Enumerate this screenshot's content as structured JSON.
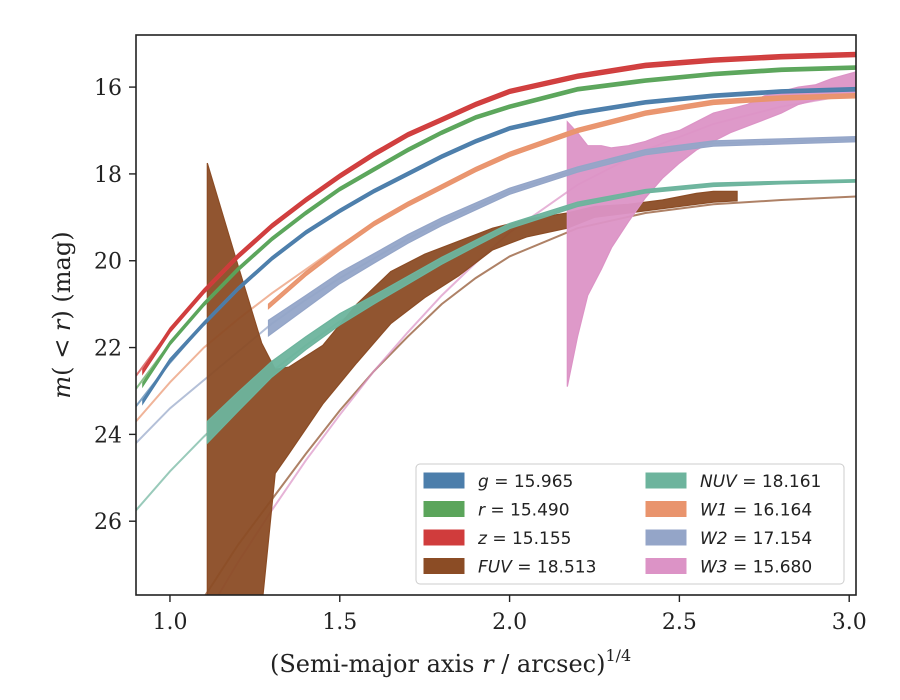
{
  "chart_data": {
    "type": "line",
    "xlabel": "(Semi-major axis r / arcsec)",
    "xlabel_parts": {
      "pre": "(Semi-major axis ",
      "var": "r",
      "post": " / arcsec)",
      "sup": "1/4"
    },
    "ylabel": "m(< r) (mag)",
    "ylabel_parts": {
      "m": "m",
      "open": "(",
      "lt": " < ",
      "r": "r",
      "close": ")",
      "unit": " (mag)"
    },
    "xlim": [
      0.9,
      3.02
    ],
    "ylim": [
      27.7,
      14.8
    ],
    "y_inverted": true,
    "xticks": [
      1.0,
      1.5,
      2.0,
      2.5,
      3.0
    ],
    "xtick_labels": [
      "1.0",
      "1.5",
      "2.0",
      "2.5",
      "3.0"
    ],
    "yticks": [
      16,
      18,
      20,
      22,
      24,
      26
    ],
    "ytick_labels": [
      "16",
      "18",
      "20",
      "22",
      "24",
      "26"
    ],
    "grid": false,
    "legend_position": "lower-right",
    "legend_columns": 2,
    "series": [
      {
        "name": "g",
        "label_var": "g",
        "label_value": "15.965",
        "color": "#4c7eab",
        "model": {
          "x": [
            0.9,
            1.0,
            1.1,
            1.2,
            1.3,
            1.4,
            1.5,
            1.6,
            1.7,
            1.8,
            1.9,
            2.0,
            2.2,
            2.4,
            2.6,
            2.8,
            3.02
          ],
          "y": [
            23.35,
            22.35,
            21.45,
            20.65,
            19.95,
            19.35,
            18.85,
            18.4,
            18.0,
            17.6,
            17.25,
            16.95,
            16.6,
            16.35,
            16.2,
            16.1,
            16.05
          ]
        },
        "observed": {
          "x": [
            0.92,
            1.0,
            1.1,
            1.2,
            1.3,
            1.4,
            1.5,
            1.6,
            1.7,
            1.8,
            1.9,
            2.0,
            2.2,
            2.4,
            2.6,
            2.8,
            3.02
          ],
          "y": [
            23.25,
            22.3,
            21.45,
            20.65,
            19.95,
            19.35,
            18.85,
            18.4,
            18.0,
            17.6,
            17.25,
            16.95,
            16.6,
            16.35,
            16.2,
            16.1,
            16.05
          ],
          "err": 0.04
        }
      },
      {
        "name": "r",
        "label_var": "r",
        "label_value": "15.490",
        "color": "#5ba55b",
        "model": {
          "x": [
            0.9,
            1.0,
            1.1,
            1.2,
            1.3,
            1.4,
            1.5,
            1.6,
            1.7,
            1.8,
            1.9,
            2.0,
            2.2,
            2.4,
            2.6,
            2.8,
            3.02
          ],
          "y": [
            22.95,
            21.9,
            21.0,
            20.2,
            19.5,
            18.9,
            18.35,
            17.9,
            17.45,
            17.05,
            16.7,
            16.45,
            16.05,
            15.85,
            15.7,
            15.6,
            15.55
          ]
        },
        "observed": {
          "x": [
            0.92,
            1.0,
            1.1,
            1.2,
            1.3,
            1.4,
            1.5,
            1.6,
            1.7,
            1.8,
            1.9,
            2.0,
            2.2,
            2.4,
            2.6,
            2.8,
            3.02
          ],
          "y": [
            22.85,
            21.9,
            21.0,
            20.2,
            19.5,
            18.9,
            18.35,
            17.9,
            17.45,
            17.05,
            16.7,
            16.45,
            16.05,
            15.85,
            15.7,
            15.6,
            15.55
          ],
          "err": 0.04
        }
      },
      {
        "name": "z",
        "label_var": "z",
        "label_value": "15.155",
        "color": "#d03c3c",
        "model": {
          "x": [
            0.9,
            1.0,
            1.1,
            1.2,
            1.3,
            1.4,
            1.5,
            1.6,
            1.7,
            1.8,
            1.9,
            2.0,
            2.2,
            2.4,
            2.6,
            2.8,
            3.02
          ],
          "y": [
            22.65,
            21.6,
            20.7,
            19.9,
            19.2,
            18.6,
            18.05,
            17.55,
            17.1,
            16.75,
            16.4,
            16.1,
            15.75,
            15.5,
            15.38,
            15.3,
            15.25
          ]
        },
        "observed": {
          "x": [
            0.92,
            1.0,
            1.1,
            1.2,
            1.3,
            1.4,
            1.5,
            1.6,
            1.7,
            1.8,
            1.9,
            2.0,
            2.2,
            2.4,
            2.6,
            2.8,
            3.02
          ],
          "y": [
            22.55,
            21.6,
            20.7,
            19.9,
            19.2,
            18.6,
            18.05,
            17.55,
            17.1,
            16.75,
            16.4,
            16.1,
            15.75,
            15.5,
            15.38,
            15.3,
            15.25
          ],
          "err": 0.05
        }
      },
      {
        "name": "FUV",
        "label_var": "FUV",
        "label_value": "18.513",
        "color": "#8b4c25",
        "model": {
          "x": [
            1.08,
            1.2,
            1.3,
            1.4,
            1.5,
            1.6,
            1.7,
            1.8,
            1.9,
            2.0,
            2.2,
            2.4,
            2.6,
            2.8,
            3.02
          ],
          "y": [
            28.0,
            26.55,
            25.5,
            24.45,
            23.45,
            22.55,
            21.75,
            21.0,
            20.4,
            19.9,
            19.25,
            18.9,
            18.7,
            18.6,
            18.52
          ]
        },
        "band_x": [
          1.11,
          1.2,
          1.27,
          1.31,
          1.35,
          1.45,
          1.55,
          1.65,
          1.75,
          1.85,
          1.95,
          2.05,
          2.17,
          2.25,
          2.35,
          2.45,
          2.55,
          2.6,
          2.67
        ],
        "band_upper": [
          17.75,
          20.1,
          21.9,
          22.5,
          22.45,
          21.95,
          21.0,
          20.25,
          19.85,
          19.55,
          19.25,
          19.05,
          18.9,
          18.75,
          18.7,
          18.6,
          18.45,
          18.4,
          18.4
        ],
        "band_lower": [
          28.0,
          28.0,
          28.0,
          24.9,
          24.45,
          23.3,
          22.35,
          21.45,
          20.85,
          20.35,
          19.75,
          19.45,
          19.25,
          19.0,
          18.9,
          18.8,
          18.7,
          18.65,
          18.62
        ]
      },
      {
        "name": "NUV",
        "label_var": "NUV",
        "label_value": "18.161",
        "color": "#6db49d",
        "model": {
          "x": [
            0.9,
            1.0,
            1.1,
            1.2,
            1.3,
            1.4,
            1.5,
            1.6,
            1.7,
            1.8,
            1.9,
            2.0,
            2.2,
            2.4,
            2.6,
            2.8,
            3.02
          ],
          "y": [
            25.75,
            24.85,
            24.05,
            23.3,
            22.55,
            21.95,
            21.4,
            20.95,
            20.5,
            20.05,
            19.6,
            19.2,
            18.7,
            18.4,
            18.25,
            18.2,
            18.16
          ]
        },
        "observed": {
          "x": [
            1.11,
            1.2,
            1.3,
            1.4,
            1.5,
            1.6,
            1.7,
            1.8,
            1.9,
            2.0,
            2.2,
            2.4,
            2.6,
            2.8,
            3.02
          ],
          "y": [
            23.95,
            23.25,
            22.5,
            21.9,
            21.35,
            20.9,
            20.45,
            20.0,
            19.6,
            19.2,
            18.7,
            18.4,
            18.25,
            18.2,
            18.16
          ],
          "err": [
            0.25,
            0.22,
            0.18,
            0.15,
            0.13,
            0.1,
            0.09,
            0.08,
            0.07,
            0.06,
            0.05,
            0.04,
            0.04,
            0.03,
            0.03
          ]
        }
      },
      {
        "name": "W1",
        "label_var": "W1",
        "label_value": "16.164",
        "color": "#e9946d",
        "model": {
          "x": [
            0.9,
            1.0,
            1.1,
            1.2,
            1.3,
            1.4,
            1.5,
            1.6,
            1.7,
            1.8,
            1.9,
            2.0,
            2.2,
            2.4,
            2.6,
            2.8,
            3.02
          ],
          "y": [
            23.7,
            22.8,
            22.0,
            21.35,
            20.75,
            20.2,
            19.65,
            19.15,
            18.7,
            18.3,
            17.9,
            17.55,
            17.0,
            16.6,
            16.35,
            16.25,
            16.2
          ]
        },
        "observed": {
          "x": [
            1.29,
            1.4,
            1.5,
            1.6,
            1.7,
            1.8,
            1.9,
            2.0,
            2.2,
            2.4,
            2.6,
            2.8,
            3.02
          ],
          "y": [
            21.05,
            20.3,
            19.7,
            19.15,
            18.7,
            18.3,
            17.9,
            17.55,
            17.0,
            16.6,
            16.35,
            16.25,
            16.2
          ],
          "err": 0.05
        }
      },
      {
        "name": "W2",
        "label_var": "W2",
        "label_value": "17.154",
        "color": "#94a5c8",
        "model": {
          "x": [
            0.9,
            1.0,
            1.1,
            1.2,
            1.3,
            1.4,
            1.5,
            1.6,
            1.7,
            1.8,
            1.9,
            2.0,
            2.2,
            2.4,
            2.6,
            2.8,
            3.02
          ],
          "y": [
            24.2,
            23.4,
            22.75,
            22.1,
            21.45,
            20.9,
            20.4,
            19.95,
            19.5,
            19.1,
            18.75,
            18.4,
            17.9,
            17.5,
            17.3,
            17.25,
            17.2
          ]
        },
        "observed": {
          "x": [
            1.29,
            1.4,
            1.5,
            1.6,
            1.7,
            1.8,
            1.9,
            2.0,
            2.2,
            2.4,
            2.6,
            2.8,
            3.02
          ],
          "y": [
            21.55,
            20.95,
            20.4,
            19.95,
            19.5,
            19.1,
            18.75,
            18.4,
            17.9,
            17.5,
            17.3,
            17.25,
            17.2
          ],
          "err": [
            0.18,
            0.15,
            0.13,
            0.11,
            0.1,
            0.09,
            0.08,
            0.07,
            0.06,
            0.06,
            0.06,
            0.06,
            0.06
          ]
        }
      },
      {
        "name": "W3",
        "label_var": "W3",
        "label_value": "15.680",
        "color": "#dc93c6",
        "model": {
          "x": [
            1.12,
            1.2,
            1.3,
            1.4,
            1.5,
            1.6,
            1.7,
            1.8,
            1.9,
            2.0,
            2.2,
            2.4,
            2.6,
            2.8,
            3.02
          ],
          "y": [
            28.0,
            26.95,
            25.75,
            24.6,
            23.55,
            22.55,
            21.65,
            20.8,
            20.05,
            19.35,
            18.25,
            17.45,
            16.85,
            16.45,
            16.15
          ]
        },
        "band_x": [
          2.17,
          2.2,
          2.23,
          2.27,
          2.3,
          2.35,
          2.4,
          2.45,
          2.5,
          2.55,
          2.6,
          2.65,
          2.7,
          2.75,
          2.8,
          2.85,
          2.9,
          2.95,
          3.02
        ],
        "band_upper": [
          16.8,
          17.05,
          17.35,
          17.35,
          17.4,
          17.35,
          17.25,
          17.1,
          17.0,
          16.8,
          16.6,
          16.5,
          16.4,
          16.2,
          16.1,
          16.0,
          15.95,
          15.8,
          15.65
        ],
        "band_lower": [
          22.9,
          21.75,
          20.8,
          20.2,
          19.7,
          19.1,
          18.55,
          18.1,
          17.75,
          17.45,
          17.25,
          17.05,
          16.9,
          16.75,
          16.6,
          16.4,
          16.3,
          16.25,
          16.2
        ]
      }
    ]
  }
}
